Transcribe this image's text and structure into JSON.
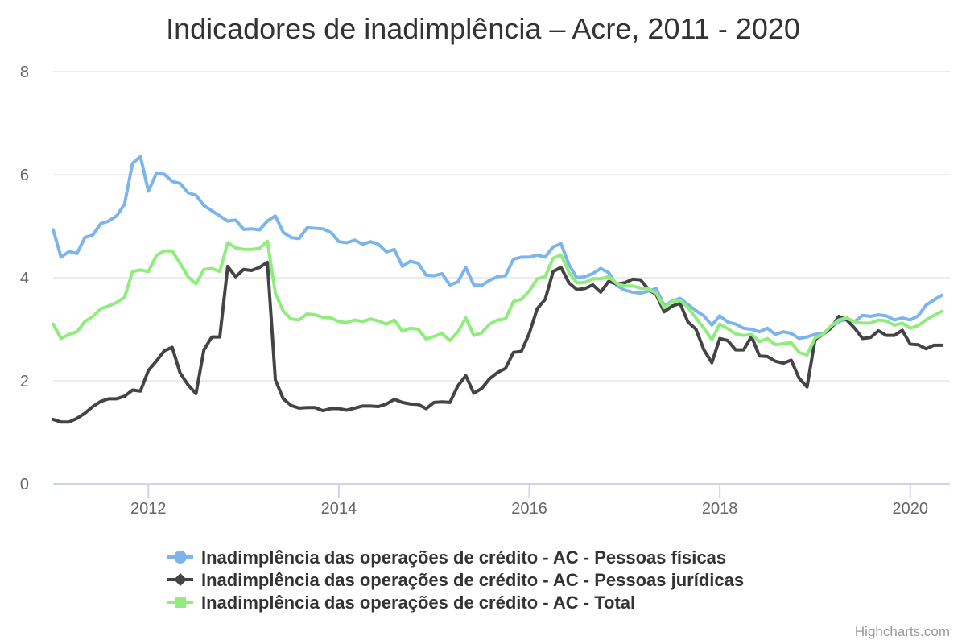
{
  "chart_data": {
    "type": "line",
    "title": "Indicadores de inadimplência – Acre, 2011 - 2020",
    "xlabel": "",
    "ylabel": "",
    "x_start": "2011-01",
    "x_interval": "month",
    "xlim": [
      "2011-01",
      "2020-06"
    ],
    "ylim": [
      0,
      8
    ],
    "x_ticks": [
      "2012",
      "2014",
      "2016",
      "2018",
      "2020"
    ],
    "y_ticks": [
      0,
      2,
      4,
      6,
      8
    ],
    "grid": true,
    "legend_position": "bottom-center",
    "series": [
      {
        "name": "Inadimplência das operações de crédito - AC - Pessoas físicas",
        "color": "#7cb5ec",
        "marker": "circle",
        "values": [
          4.93,
          4.4,
          4.51,
          4.47,
          4.78,
          4.83,
          5.05,
          5.1,
          5.2,
          5.43,
          6.22,
          6.35,
          5.68,
          6.02,
          6.01,
          5.87,
          5.83,
          5.65,
          5.6,
          5.4,
          5.3,
          5.2,
          5.1,
          5.12,
          4.94,
          4.95,
          4.93,
          5.1,
          5.2,
          4.88,
          4.78,
          4.76,
          4.97,
          4.96,
          4.95,
          4.88,
          4.7,
          4.68,
          4.73,
          4.65,
          4.7,
          4.65,
          4.5,
          4.55,
          4.22,
          4.32,
          4.28,
          4.05,
          4.04,
          4.08,
          3.86,
          3.92,
          4.2,
          3.86,
          3.85,
          3.95,
          4.02,
          4.04,
          4.36,
          4.4,
          4.4,
          4.44,
          4.4,
          4.6,
          4.66,
          4.25,
          4.0,
          4.02,
          4.08,
          4.18,
          4.1,
          3.85,
          3.76,
          3.72,
          3.7,
          3.74,
          3.79,
          3.45,
          3.55,
          3.6,
          3.48,
          3.36,
          3.26,
          3.08,
          3.26,
          3.14,
          3.1,
          3.02,
          3.0,
          2.95,
          3.02,
          2.9,
          2.95,
          2.92,
          2.82,
          2.85,
          2.9,
          2.92,
          3.03,
          3.15,
          3.2,
          3.15,
          3.27,
          3.25,
          3.28,
          3.26,
          3.18,
          3.22,
          3.18,
          3.26,
          3.47,
          3.57,
          3.66
        ]
      },
      {
        "name": "Inadimplência das operações de crédito - AC - Pessoas jurídicas",
        "color": "#434348",
        "marker": "diamond",
        "values": [
          1.25,
          1.2,
          1.2,
          1.27,
          1.37,
          1.5,
          1.6,
          1.65,
          1.65,
          1.7,
          1.82,
          1.8,
          2.2,
          2.38,
          2.58,
          2.65,
          2.15,
          1.92,
          1.75,
          2.6,
          2.85,
          2.85,
          4.22,
          4.02,
          4.16,
          4.14,
          4.2,
          4.3,
          2.02,
          1.65,
          1.52,
          1.47,
          1.48,
          1.48,
          1.42,
          1.46,
          1.46,
          1.43,
          1.47,
          1.51,
          1.51,
          1.5,
          1.55,
          1.64,
          1.58,
          1.55,
          1.54,
          1.46,
          1.58,
          1.59,
          1.58,
          1.9,
          2.1,
          1.76,
          1.85,
          2.04,
          2.16,
          2.24,
          2.55,
          2.57,
          2.92,
          3.4,
          3.58,
          4.12,
          4.2,
          3.9,
          3.77,
          3.79,
          3.86,
          3.72,
          3.93,
          3.88,
          3.9,
          3.97,
          3.96,
          3.78,
          3.67,
          3.34,
          3.45,
          3.5,
          3.14,
          3.0,
          2.6,
          2.35,
          2.82,
          2.78,
          2.6,
          2.6,
          2.86,
          2.48,
          2.47,
          2.38,
          2.34,
          2.4,
          2.05,
          1.88,
          2.8,
          2.9,
          3.02,
          3.25,
          3.18,
          3.02,
          2.82,
          2.84,
          2.97,
          2.88,
          2.88,
          2.98,
          2.71,
          2.7,
          2.62,
          2.69,
          2.69
        ]
      },
      {
        "name": "Inadimplência das operações de crédito - AC - Total",
        "color": "#90ed7d",
        "marker": "square",
        "values": [
          3.1,
          2.82,
          2.9,
          2.95,
          3.15,
          3.25,
          3.4,
          3.45,
          3.52,
          3.62,
          4.12,
          4.15,
          4.12,
          4.43,
          4.52,
          4.52,
          4.28,
          4.02,
          3.88,
          4.16,
          4.18,
          4.12,
          4.68,
          4.58,
          4.55,
          4.55,
          4.57,
          4.71,
          3.7,
          3.35,
          3.2,
          3.18,
          3.3,
          3.28,
          3.23,
          3.22,
          3.15,
          3.13,
          3.18,
          3.15,
          3.2,
          3.16,
          3.1,
          3.18,
          2.96,
          3.02,
          3.0,
          2.81,
          2.86,
          2.92,
          2.78,
          2.95,
          3.22,
          2.88,
          2.93,
          3.1,
          3.18,
          3.2,
          3.54,
          3.58,
          3.74,
          3.98,
          4.02,
          4.38,
          4.44,
          4.1,
          3.9,
          3.91,
          3.98,
          3.98,
          4.02,
          3.89,
          3.84,
          3.84,
          3.8,
          3.78,
          3.7,
          3.42,
          3.54,
          3.56,
          3.42,
          3.22,
          3.02,
          2.8,
          3.1,
          3.01,
          2.91,
          2.88,
          2.9,
          2.76,
          2.82,
          2.7,
          2.72,
          2.74,
          2.55,
          2.5,
          2.83,
          2.9,
          3.06,
          3.18,
          3.22,
          3.14,
          3.12,
          3.12,
          3.18,
          3.16,
          3.08,
          3.12,
          3.02,
          3.07,
          3.18,
          3.27,
          3.35
        ]
      }
    ]
  },
  "credits": "Highcharts.com"
}
